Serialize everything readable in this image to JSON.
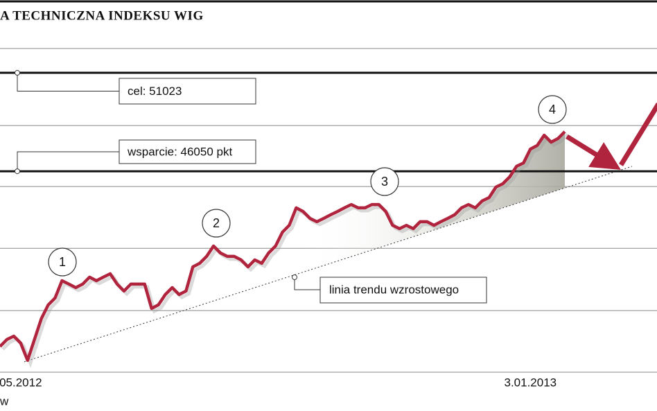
{
  "chart_data": {
    "type": "line",
    "title": "A TECHNICZNA INDEKSU WIG",
    "source": "w",
    "categories": [
      null,
      null,
      null,
      "05.2012",
      null,
      null,
      null,
      null,
      null,
      null,
      null,
      null,
      null,
      null,
      null,
      null,
      null,
      null,
      null,
      null,
      null,
      null,
      null,
      null,
      null,
      null,
      null,
      null,
      null,
      null,
      null,
      null,
      null,
      null,
      null,
      null,
      null,
      null,
      null,
      null,
      null,
      null,
      null,
      null,
      null,
      null,
      null,
      null,
      null,
      null,
      null,
      null,
      null,
      null,
      null,
      null,
      null,
      null,
      null,
      null,
      null,
      null,
      null,
      null,
      null,
      null,
      null,
      null,
      null,
      null,
      null,
      null,
      null,
      null,
      null,
      null,
      null,
      "3.01.2013",
      null,
      null,
      null,
      null,
      null
    ],
    "series": [
      {
        "color": "#b0243e",
        "values": [
          37200,
          37550,
          37720,
          37370,
          36500,
          37550,
          38600,
          39300,
          39650,
          40520,
          40350,
          40170,
          40350,
          40700,
          40520,
          40700,
          40870,
          40350,
          40000,
          40350,
          40350,
          40350,
          39120,
          39300,
          39820,
          40170,
          39820,
          40000,
          41220,
          41400,
          41750,
          42270,
          41920,
          41750,
          41750,
          41570,
          41220,
          41570,
          41400,
          41920,
          42270,
          42970,
          43320,
          44200,
          44020,
          43670,
          43500,
          43670,
          43850,
          44020,
          44200,
          44370,
          44200,
          44200,
          44370,
          44370,
          44020,
          43320,
          43150,
          43320,
          43150,
          43500,
          43500,
          43320,
          43500,
          43670,
          43850,
          44200,
          44370,
          44200,
          44550,
          44720,
          45250,
          45420,
          45770,
          46300,
          46470,
          47170,
          47350,
          47870,
          47520,
          47700,
          48050
        ]
      }
    ],
    "ylim": [
      35900,
      54700
    ],
    "yticks": [
      39010,
      42160,
      45280,
      48360,
      52250
    ],
    "grid": true,
    "levels": [
      {
        "text": "cel: 51023",
        "value": 51023
      },
      {
        "text": "wsparcie: 46050 pkt",
        "value": 46050
      }
    ],
    "trend_label": "linia trendu wzrostowego",
    "markers": [
      "1",
      "2",
      "3",
      "4"
    ]
  }
}
